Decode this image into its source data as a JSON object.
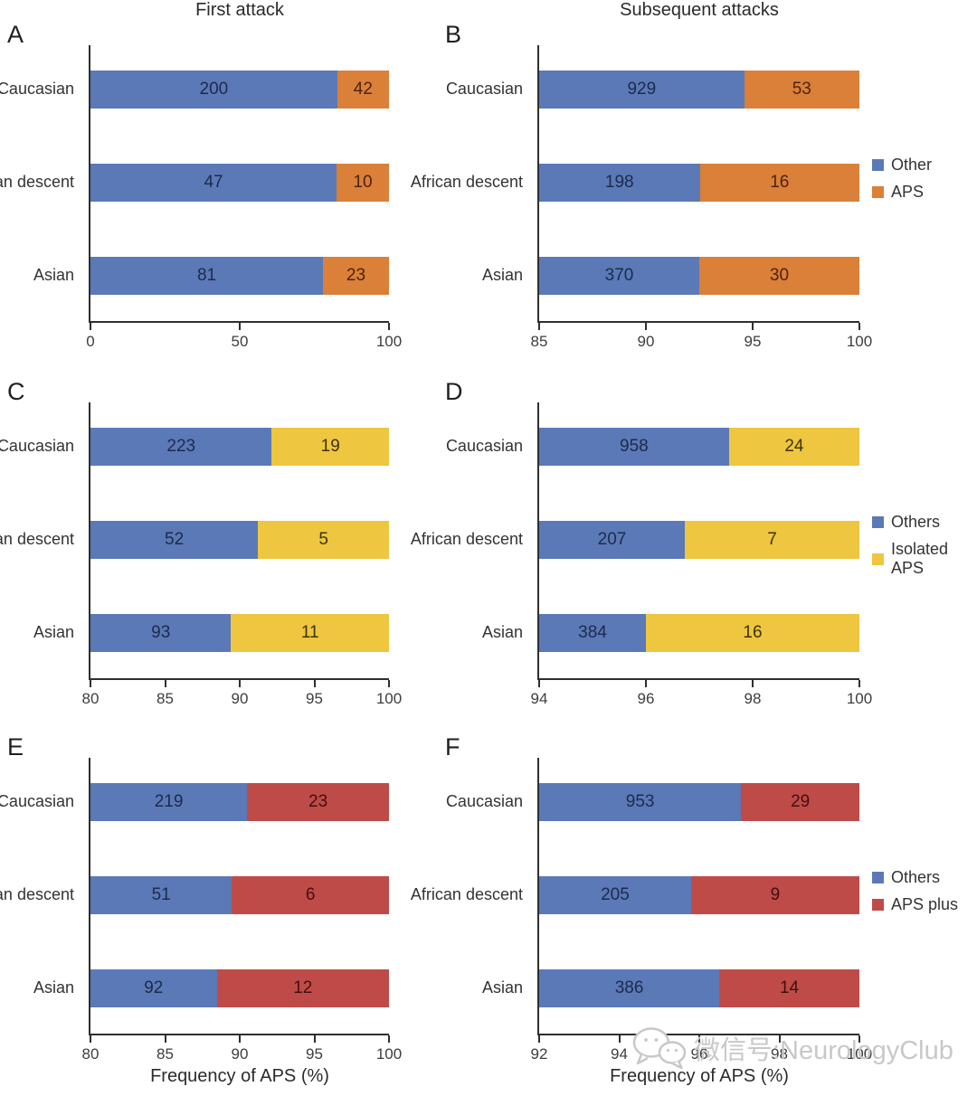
{
  "column_titles": [
    "First attack",
    "Subsequent attacks"
  ],
  "colors": {
    "series_blue": "#5B79B7",
    "series_orange": "#DA8038",
    "series_yellow": "#EEC63F",
    "series_red": "#BE4B48",
    "label_on_blue": "#1C2B4A",
    "label_on_orange": "#4F2309",
    "label_on_yellow": "#3E3409",
    "label_on_red": "#40100F",
    "axis": "#2F2F2F",
    "watermark": "#C8C8C8"
  },
  "watermark": {
    "icon": "wechat-icon",
    "text": "微信号:NeurologyClub"
  },
  "chart_data": [
    {
      "panel": "A",
      "type": "bar",
      "orientation": "horizontal",
      "stacked": true,
      "title": "First attack",
      "categories": [
        "Caucasian",
        "African descent",
        "Asian"
      ],
      "series": [
        {
          "name": "Other",
          "color": "blue",
          "values": [
            200,
            47,
            81
          ]
        },
        {
          "name": "APS",
          "color": "orange",
          "values": [
            42,
            10,
            23
          ]
        }
      ],
      "note": "segment widths are percent of row total; every bar ends at 100%",
      "xlim": [
        0,
        100
      ],
      "xticks": [
        0,
        50,
        100
      ],
      "show_legend": false,
      "xlabel": null
    },
    {
      "panel": "B",
      "type": "bar",
      "orientation": "horizontal",
      "stacked": true,
      "title": "Subsequent attacks",
      "categories": [
        "Caucasian",
        "African descent",
        "Asian"
      ],
      "series": [
        {
          "name": "Other",
          "color": "blue",
          "values": [
            929,
            198,
            370
          ]
        },
        {
          "name": "APS",
          "color": "orange",
          "values": [
            53,
            16,
            30
          ]
        }
      ],
      "note": "segment widths are percent of row total; every bar ends at 100%",
      "xlim": [
        85,
        100
      ],
      "xticks": [
        85,
        90,
        95,
        100
      ],
      "show_legend": true,
      "xlabel": null
    },
    {
      "panel": "C",
      "type": "bar",
      "orientation": "horizontal",
      "stacked": true,
      "title": null,
      "categories": [
        "Caucasian",
        "African descent",
        "Asian"
      ],
      "series": [
        {
          "name": "Others",
          "color": "blue",
          "values": [
            223,
            52,
            93
          ]
        },
        {
          "name": "Isolated APS",
          "color": "yellow",
          "values": [
            19,
            5,
            11
          ]
        }
      ],
      "note": "segment widths are percent of row total; every bar ends at 100%",
      "xlim": [
        80,
        100
      ],
      "xticks": [
        80,
        85,
        90,
        95,
        100
      ],
      "show_legend": false,
      "xlabel": null
    },
    {
      "panel": "D",
      "type": "bar",
      "orientation": "horizontal",
      "stacked": true,
      "title": null,
      "categories": [
        "Caucasian",
        "African descent",
        "Asian"
      ],
      "series": [
        {
          "name": "Others",
          "color": "blue",
          "values": [
            958,
            207,
            384
          ]
        },
        {
          "name": "Isolated APS",
          "color": "yellow",
          "values": [
            24,
            7,
            16
          ]
        }
      ],
      "note": "segment widths are percent of row total; every bar ends at 100%",
      "xlim": [
        94,
        100
      ],
      "xticks": [
        94,
        96,
        98,
        100
      ],
      "show_legend": true,
      "xlabel": null
    },
    {
      "panel": "E",
      "type": "bar",
      "orientation": "horizontal",
      "stacked": true,
      "title": null,
      "categories": [
        "Caucasian",
        "African descent",
        "Asian"
      ],
      "series": [
        {
          "name": "Others",
          "color": "blue",
          "values": [
            219,
            51,
            92
          ]
        },
        {
          "name": "APS plus",
          "color": "red",
          "values": [
            23,
            6,
            12
          ]
        }
      ],
      "note": "segment widths are percent of row total; every bar ends at 100%",
      "xlim": [
        80,
        100
      ],
      "xticks": [
        80,
        85,
        90,
        95,
        100
      ],
      "show_legend": false,
      "xlabel": "Frequency of APS (%)"
    },
    {
      "panel": "F",
      "type": "bar",
      "orientation": "horizontal",
      "stacked": true,
      "title": null,
      "categories": [
        "Caucasian",
        "African descent",
        "Asian"
      ],
      "series": [
        {
          "name": "Others",
          "color": "blue",
          "values": [
            953,
            205,
            386
          ]
        },
        {
          "name": "APS plus",
          "color": "red",
          "values": [
            29,
            9,
            14
          ]
        }
      ],
      "note": "segment widths are percent of row total; every bar ends at 100%",
      "xlim": [
        92,
        100
      ],
      "xticks": [
        92,
        94,
        96,
        98,
        100
      ],
      "show_legend": true,
      "xlabel": "Frequency of APS (%)"
    }
  ]
}
